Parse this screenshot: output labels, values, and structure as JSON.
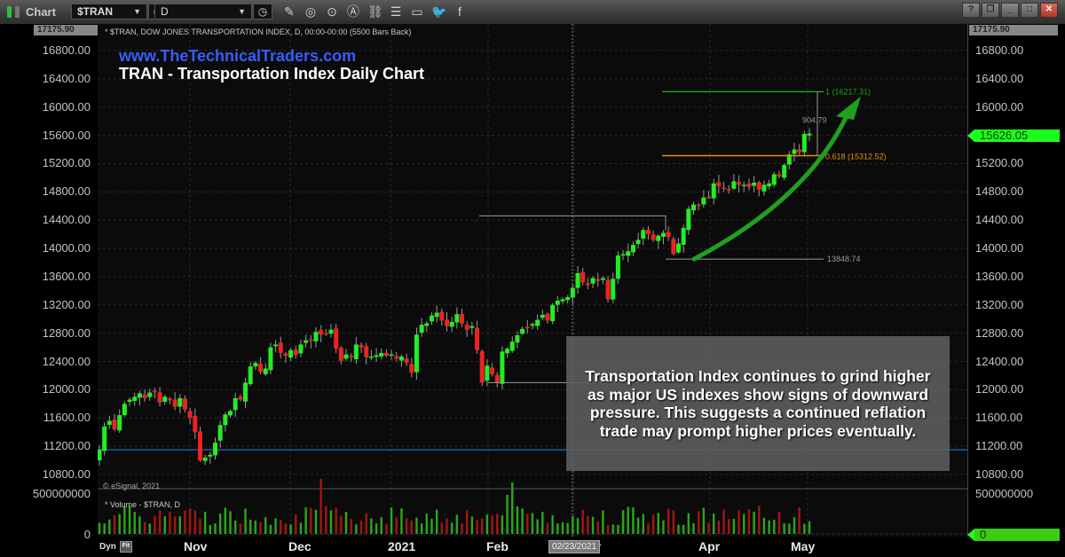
{
  "window": {
    "app_label": "Chart",
    "symbol": "$TRAN",
    "interval": "D",
    "controls": [
      "?",
      "restore",
      "minimize",
      "maximize",
      "close"
    ],
    "tools": [
      {
        "name": "pencil-icon",
        "glyph": "✎"
      },
      {
        "name": "studies-icon",
        "glyph": "◎"
      },
      {
        "name": "play-icon",
        "glyph": "⊙"
      },
      {
        "name": "alert-icon",
        "glyph": "Ⓐ"
      },
      {
        "name": "link-icon",
        "glyph": "⛓"
      },
      {
        "name": "list-icon",
        "glyph": "☰"
      },
      {
        "name": "comment-icon",
        "glyph": "▭"
      },
      {
        "name": "twitter-icon",
        "glyph": "🐦"
      },
      {
        "name": "facebook-icon",
        "glyph": "f"
      }
    ]
  },
  "chart": {
    "header": "* $TRAN, DOW JONES TRANSPORTATION INDEX, D, 00:00-00:00 (5500 Bars Back)",
    "site": "www.TheTechnicalTraders.com",
    "title": "TRAN - Transportation Index Daily Chart",
    "top_value": "17175.90",
    "last_price": "15626.05",
    "copyright": "© eSignal, 2021",
    "volume_label": "* Volume - $TRAN, D",
    "volume_axis_top": "500000000",
    "volume_axis_zero": "0",
    "dyn_label": "Dyn",
    "date_tag": "02/23/2021",
    "annotations": {
      "fib_1": "1 (16217.31)",
      "fib_0618": "0.618 (15312.52)",
      "range_value": "904.79",
      "low_value": "13848.74",
      "note": "Transportation Index continues to grind higher as major US indexes show signs of downward pressure. This suggests a continued reflation trade may prompt higher prices eventually."
    }
  },
  "chart_data": {
    "type": "candlestick",
    "title": "TRAN - Transportation Index Daily Chart",
    "subtitle": "* $TRAN, DOW JONES TRANSPORTATION INDEX, D",
    "xlabel": "",
    "ylabel": "",
    "ylim": [
      10600,
      17175.9
    ],
    "y_ticks": [
      16800,
      16400,
      16000,
      15600,
      15200,
      14800,
      14400,
      14000,
      13600,
      13200,
      12800,
      12400,
      12000,
      11600,
      11200,
      10800
    ],
    "x_ticks": [
      "Nov",
      "Dec",
      "2021",
      "Feb",
      "Mar",
      "Apr",
      "May"
    ],
    "grid": true,
    "colors": {
      "up": "#22ee22",
      "down": "#ee2222",
      "fib_1": "#1fa01f",
      "fib_0618": "#e8900a",
      "support": "#1e6fb8",
      "arrow": "#1fa01f"
    },
    "closes": [
      11150,
      11480,
      11560,
      11440,
      11640,
      11800,
      11860,
      11900,
      11950,
      11880,
      11960,
      11980,
      11820,
      11900,
      11850,
      11760,
      11880,
      11720,
      11600,
      11400,
      11000,
      11040,
      11080,
      11250,
      11500,
      11650,
      11700,
      11880,
      11860,
      12100,
      12330,
      12380,
      12250,
      12300,
      12600,
      12640,
      12520,
      12480,
      12560,
      12490,
      12640,
      12700,
      12690,
      12820,
      12780,
      12790,
      12850,
      12580,
      12410,
      12500,
      12460,
      12640,
      12600,
      12460,
      12470,
      12490,
      12520,
      12480,
      12500,
      12440,
      12470,
      12380,
      12240,
      12780,
      12920,
      12940,
      13050,
      13090,
      12980,
      12900,
      12960,
      13070,
      12940,
      12850,
      12900,
      12560,
      12100,
      12340,
      12220,
      12100,
      12540,
      12580,
      12680,
      12770,
      12860,
      12880,
      12930,
      12990,
      13060,
      12980,
      13200,
      13260,
      13280,
      13310,
      13440,
      13650,
      13520,
      13480,
      13580,
      13540,
      13580,
      13280,
      13570,
      13900,
      13920,
      13960,
      14050,
      14120,
      14260,
      14200,
      14120,
      14180,
      14220,
      14160,
      13920,
      14070,
      14290,
      14560,
      14620,
      14610,
      14720,
      14720,
      14920,
      14880,
      14850,
      14820,
      14950,
      14900,
      14900,
      14870,
      14930,
      14830,
      14900,
      14920,
      15050,
      15020,
      15180,
      15330,
      15400,
      15360,
      15620,
      15626
    ],
    "series": [
      {
        "name": "Volume - $TRAN, D",
        "type": "bar",
        "note": "daily volume, y-range 0–500000000"
      }
    ],
    "horizontal_lines": [
      {
        "label": "1 (16217.31)",
        "value": 16217.31
      },
      {
        "label": "0.618 (15312.52)",
        "value": 15312.52
      },
      {
        "label": "13848.74",
        "value": 13848.74
      },
      {
        "label": "support",
        "value": 11150
      }
    ],
    "last_price": 15626.05
  }
}
